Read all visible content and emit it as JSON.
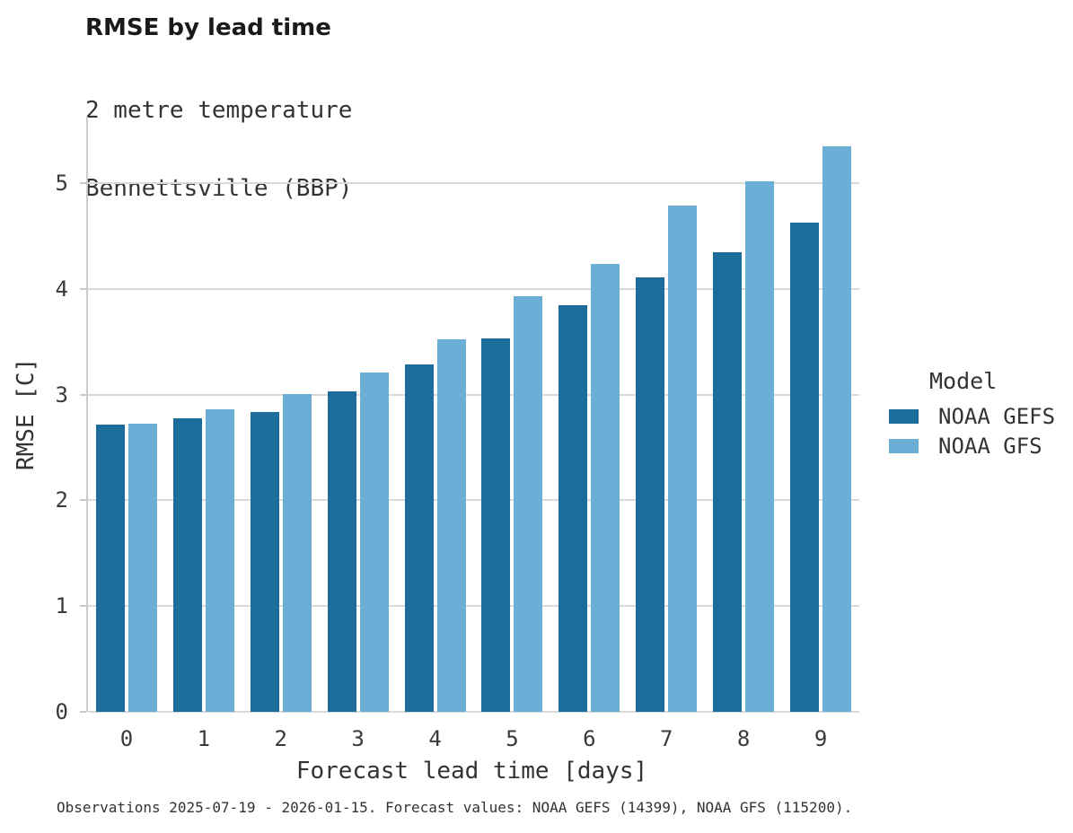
{
  "header": {
    "title": "RMSE by lead time",
    "subtitle_line1": "2 metre temperature",
    "subtitle_line2": "Bennettsville (BBP)"
  },
  "chart_data": {
    "type": "bar",
    "title": "RMSE by lead time",
    "subtitle": "2 metre temperature, Bennettsville (BBP)",
    "categories": [
      "0",
      "1",
      "2",
      "3",
      "4",
      "5",
      "6",
      "7",
      "8",
      "9"
    ],
    "series": [
      {
        "name": "NOAA GEFS",
        "color": "#1c6c9c",
        "values": [
          2.72,
          2.78,
          2.84,
          3.03,
          3.29,
          3.53,
          3.85,
          4.11,
          4.35,
          4.63
        ]
      },
      {
        "name": "NOAA GFS",
        "color": "#6bafd7",
        "values": [
          2.73,
          2.86,
          3.01,
          3.21,
          3.52,
          3.93,
          4.24,
          4.79,
          5.02,
          5.35
        ]
      }
    ],
    "xlabel": "Forecast lead time [days]",
    "ylabel": "RMSE [C]",
    "ylim": [
      0,
      5.63
    ],
    "yticks": [
      0,
      1,
      2,
      3,
      4,
      5
    ],
    "grid": "horizontal",
    "legend_position": "right"
  },
  "legend": {
    "title": "Model",
    "items": [
      {
        "label": "NOAA GEFS"
      },
      {
        "label": "NOAA GFS"
      }
    ]
  },
  "footer": {
    "caption": "Observations 2025-07-19 - 2026-01-15. Forecast values: NOAA GEFS (14399), NOAA GFS (115200)."
  },
  "colors": {
    "gefs_dark_blue": "#1c6c9c",
    "gfs_light_blue": "#6bafd7",
    "gridline": "#d9d9d9",
    "axis_spine": "#cccccc",
    "text": "#333333"
  }
}
